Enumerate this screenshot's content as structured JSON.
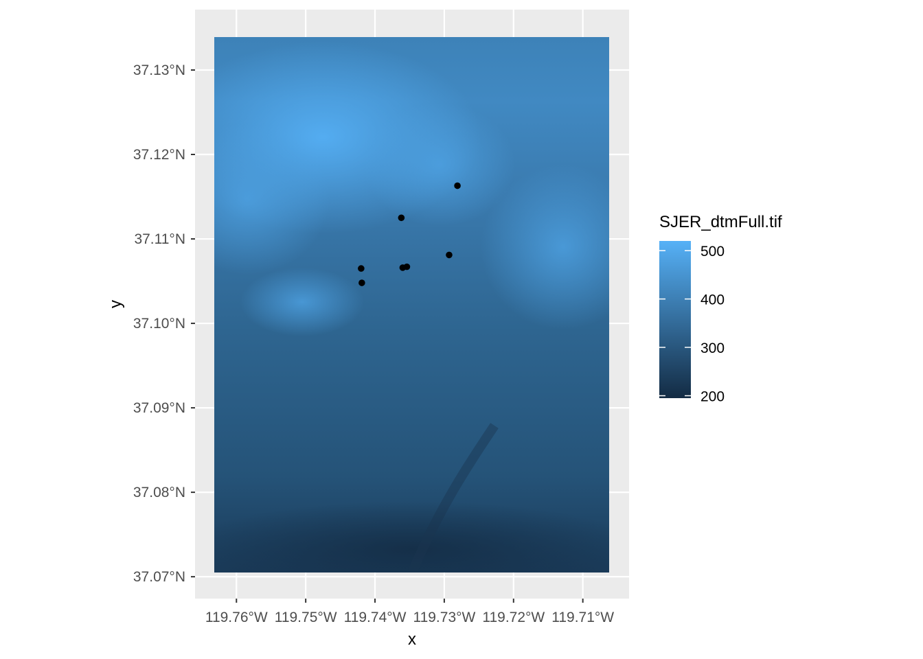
{
  "chart_data": {
    "type": "raster-map",
    "title": "",
    "xlabel": "x",
    "ylabel": "y",
    "x_ticks": [
      "119.76°W",
      "119.75°W",
      "119.74°W",
      "119.73°W",
      "119.72°W",
      "119.71°W"
    ],
    "y_ticks": [
      "37.07°N",
      "37.08°N",
      "37.09°N",
      "37.10°N",
      "37.11°N",
      "37.12°N",
      "37.13°N"
    ],
    "x_tick_values": [
      -119.76,
      -119.75,
      -119.74,
      -119.73,
      -119.72,
      -119.71
    ],
    "y_tick_values": [
      37.07,
      37.08,
      37.09,
      37.1,
      37.11,
      37.12,
      37.13
    ],
    "xlim": [
      -119.7632,
      -119.7062
    ],
    "ylim": [
      37.0705,
      37.1339
    ],
    "legend": {
      "title": "SJER_dtmFull.tif",
      "labels": [
        "500",
        "400",
        "300",
        "200"
      ],
      "values": [
        500,
        400,
        300,
        200
      ],
      "range": [
        195,
        520
      ],
      "low_color": "#132b43",
      "high_color": "#56b1f7",
      "position": "right"
    },
    "points": [
      {
        "lon": -119.7281,
        "lat": 37.1163
      },
      {
        "lon": -119.7362,
        "lat": 37.1125
      },
      {
        "lon": -119.7293,
        "lat": 37.1081
      },
      {
        "lon": -119.742,
        "lat": 37.1065
      },
      {
        "lon": -119.7419,
        "lat": 37.1048
      },
      {
        "lon": -119.736,
        "lat": 37.1066
      },
      {
        "lon": -119.7354,
        "lat": 37.1067
      }
    ],
    "point_color": "#000000",
    "panel_color": "#ebebeb",
    "grid_color": "#ffffff"
  }
}
